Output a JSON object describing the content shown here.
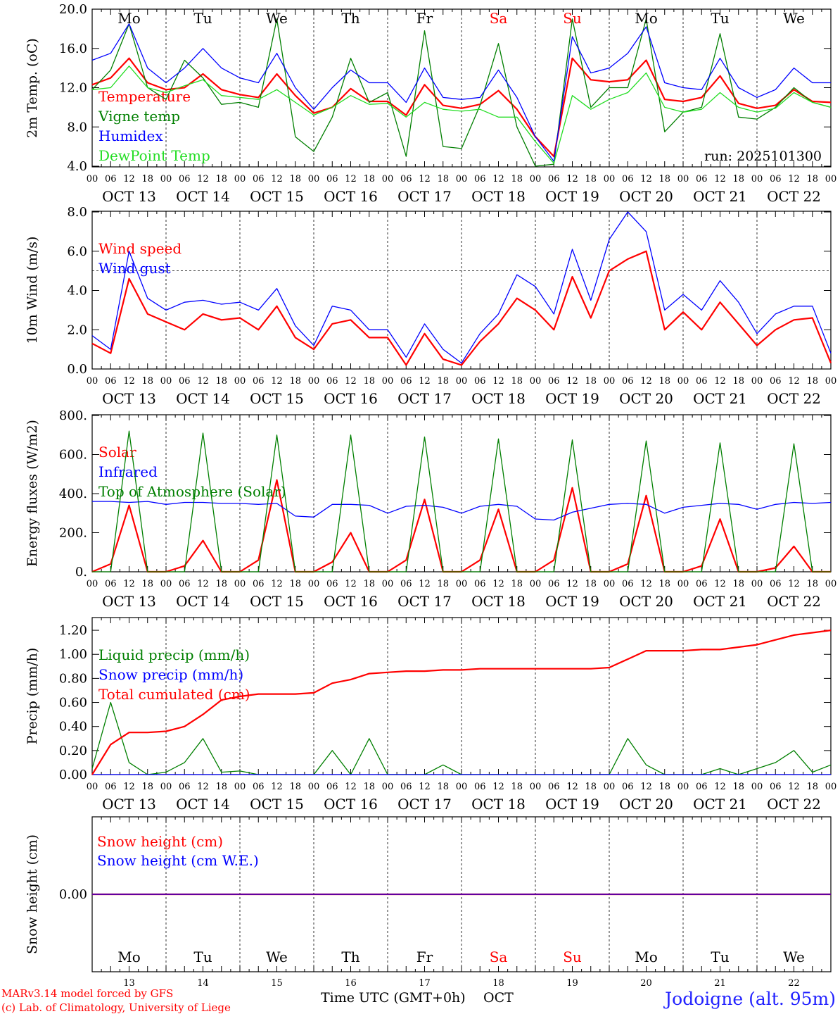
{
  "footer": {
    "model_line": "MARv3.14 model forced by GFS",
    "copyright_line": "(c) Lab. of Climatology, University of Liege",
    "xlabel": "Time UTC (GMT+0h)",
    "month": "OCT",
    "station": "Jodoigne (alt. 95m)"
  },
  "run_label": "run: 2025101300",
  "colors": {
    "red": "#ff0000",
    "green": "#007f00",
    "blue": "#0000ff",
    "lightgreen": "#22dd22",
    "weekend": "#ff0000",
    "black": "#000000"
  },
  "days": [
    {
      "dow": "Mo",
      "date": "OCT 13",
      "day": "13",
      "weekend": false
    },
    {
      "dow": "Tu",
      "date": "OCT 14",
      "day": "14",
      "weekend": false
    },
    {
      "dow": "We",
      "date": "OCT 15",
      "day": "15",
      "weekend": false
    },
    {
      "dow": "Th",
      "date": "OCT 16",
      "day": "16",
      "weekend": false
    },
    {
      "dow": "Fr",
      "date": "OCT 17",
      "day": "17",
      "weekend": false
    },
    {
      "dow": "Sa",
      "date": "OCT 18",
      "day": "18",
      "weekend": true
    },
    {
      "dow": "Su",
      "date": "OCT 19",
      "day": "19",
      "weekend": true
    },
    {
      "dow": "Mo",
      "date": "OCT 20",
      "day": "20",
      "weekend": false
    },
    {
      "dow": "Tu",
      "date": "OCT 21",
      "day": "21",
      "weekend": false
    },
    {
      "dow": "We",
      "date": "OCT 22",
      "day": "22",
      "weekend": false
    }
  ],
  "hour_ticks": [
    "00",
    "06",
    "12",
    "18"
  ],
  "chart_data": [
    {
      "type": "line",
      "ylabel": "2m Temp. (oC)",
      "ylim": [
        4,
        20
      ],
      "yticks": [
        "4.0",
        "8.0",
        "12.0",
        "16.0",
        "20.0"
      ],
      "x_hours": [
        0,
        6,
        12,
        18,
        24,
        30,
        36,
        42,
        48,
        54,
        60,
        66,
        72,
        78,
        84,
        90,
        96,
        102,
        108,
        114,
        120,
        126,
        132,
        138,
        144,
        150,
        156,
        162,
        168,
        174,
        180,
        186,
        192,
        198,
        204,
        210,
        216,
        222,
        228,
        234,
        240
      ],
      "series": [
        {
          "name": "Temperature",
          "color": "red",
          "values": [
            12.3,
            13.0,
            15.0,
            12.5,
            11.8,
            12.0,
            13.4,
            11.8,
            11.3,
            11.0,
            13.4,
            11.2,
            9.4,
            10.0,
            11.9,
            10.6,
            10.6,
            9.2,
            12.3,
            10.2,
            9.9,
            10.3,
            11.7,
            9.8,
            7.0,
            5.0,
            15.0,
            12.8,
            12.6,
            12.8,
            14.8,
            10.8,
            10.6,
            11.0,
            13.2,
            10.4,
            9.9,
            10.2,
            11.8,
            10.6,
            10.5
          ]
        },
        {
          "name": "Vigne temp",
          "color": "green",
          "values": [
            11.8,
            13.8,
            18.5,
            12.0,
            10.8,
            14.8,
            13.0,
            10.3,
            10.5,
            10.0,
            19.0,
            7.0,
            5.5,
            9.0,
            15.0,
            10.5,
            11.5,
            5.0,
            17.8,
            6.0,
            5.8,
            10.2,
            16.5,
            8.0,
            4.0,
            4.2,
            19.0,
            10.0,
            12.0,
            12.0,
            19.0,
            7.5,
            9.5,
            10.0,
            17.5,
            9.0,
            8.8,
            10.0,
            12.0,
            10.5,
            10.0
          ]
        },
        {
          "name": "Humidex",
          "color": "blue",
          "values": [
            14.8,
            15.5,
            18.5,
            14.0,
            12.5,
            14.0,
            16.0,
            14.0,
            13.0,
            12.5,
            15.5,
            12.0,
            9.8,
            12.0,
            13.8,
            12.5,
            12.5,
            10.5,
            14.0,
            11.0,
            10.8,
            11.0,
            13.8,
            11.0,
            7.0,
            4.5,
            17.2,
            13.5,
            14.0,
            15.5,
            18.2,
            12.5,
            12.0,
            11.8,
            15.0,
            12.0,
            11.0,
            11.8,
            14.0,
            12.5,
            12.5
          ]
        },
        {
          "name": "DewPoint Temp",
          "color": "lightgreen",
          "values": [
            11.8,
            12.0,
            14.2,
            12.0,
            11.5,
            12.2,
            12.8,
            11.2,
            11.0,
            10.8,
            11.8,
            10.5,
            9.2,
            10.0,
            11.2,
            10.3,
            10.4,
            9.0,
            10.5,
            9.8,
            9.6,
            9.8,
            9.0,
            9.0,
            6.5,
            4.3,
            11.2,
            9.8,
            10.8,
            11.5,
            13.5,
            10.0,
            9.5,
            9.8,
            11.5,
            10.0,
            9.5,
            9.9,
            11.5,
            10.5,
            10.0
          ]
        }
      ]
    },
    {
      "type": "line",
      "ylabel": "10m Wind (m/s)",
      "ylim": [
        0,
        8
      ],
      "yticks": [
        "0.0",
        "2.0",
        "4.0",
        "6.0",
        "8.0"
      ],
      "reference_line": 5.0,
      "x_hours": [
        0,
        6,
        12,
        18,
        24,
        30,
        36,
        42,
        48,
        54,
        60,
        66,
        72,
        78,
        84,
        90,
        96,
        102,
        108,
        114,
        120,
        126,
        132,
        138,
        144,
        150,
        156,
        162,
        168,
        174,
        180,
        186,
        192,
        198,
        204,
        210,
        216,
        222,
        228,
        234,
        240
      ],
      "series": [
        {
          "name": "Wind speed",
          "color": "red",
          "values": [
            1.3,
            0.8,
            4.6,
            2.8,
            2.4,
            2.0,
            2.8,
            2.5,
            2.6,
            2.0,
            3.2,
            1.6,
            1.0,
            2.3,
            2.5,
            1.6,
            1.6,
            0.2,
            1.8,
            0.5,
            0.2,
            1.4,
            2.3,
            3.6,
            3.0,
            2.0,
            4.7,
            2.6,
            5.0,
            5.6,
            6.0,
            2.0,
            2.9,
            2.0,
            3.4,
            2.3,
            1.2,
            2.0,
            2.5,
            2.6,
            0.3
          ]
        },
        {
          "name": "Wind gust",
          "color": "blue",
          "values": [
            1.7,
            1.0,
            6.0,
            3.6,
            3.0,
            3.4,
            3.5,
            3.3,
            3.4,
            3.0,
            4.1,
            2.2,
            1.2,
            3.2,
            3.0,
            2.0,
            2.0,
            0.6,
            2.3,
            1.0,
            0.3,
            1.8,
            2.8,
            4.8,
            4.2,
            2.8,
            6.1,
            3.5,
            6.6,
            8.0,
            7.0,
            3.0,
            3.8,
            3.0,
            4.5,
            3.4,
            1.8,
            2.8,
            3.2,
            3.2,
            0.8
          ]
        }
      ]
    },
    {
      "type": "line",
      "ylabel": "Energy fluxes (W/m2)",
      "ylim": [
        0,
        800
      ],
      "yticks": [
        "0.",
        "200.",
        "400.",
        "600.",
        "800."
      ],
      "x_hours": [
        0,
        6,
        12,
        18,
        24,
        30,
        36,
        42,
        48,
        54,
        60,
        66,
        72,
        78,
        84,
        90,
        96,
        102,
        108,
        114,
        120,
        126,
        132,
        138,
        144,
        150,
        156,
        162,
        168,
        174,
        180,
        186,
        192,
        198,
        204,
        210,
        216,
        222,
        228,
        234,
        240
      ],
      "series": [
        {
          "name": "Solar",
          "color": "red",
          "values": [
            0,
            40,
            340,
            0,
            0,
            30,
            160,
            0,
            0,
            60,
            470,
            0,
            0,
            50,
            200,
            0,
            0,
            60,
            370,
            0,
            0,
            60,
            320,
            0,
            0,
            60,
            430,
            0,
            0,
            40,
            390,
            0,
            0,
            30,
            270,
            0,
            0,
            20,
            130,
            0,
            0
          ]
        },
        {
          "name": "Infrared",
          "color": "blue",
          "values": [
            360,
            360,
            355,
            360,
            345,
            355,
            355,
            350,
            350,
            345,
            350,
            285,
            280,
            345,
            345,
            340,
            300,
            335,
            340,
            330,
            300,
            335,
            345,
            335,
            270,
            265,
            305,
            325,
            345,
            350,
            345,
            300,
            330,
            340,
            350,
            345,
            320,
            345,
            355,
            350,
            355
          ]
        },
        {
          "name": "Top of Atmosphere (Solar)",
          "color": "green",
          "values": [
            0,
            0,
            720,
            0,
            0,
            0,
            710,
            0,
            0,
            0,
            700,
            0,
            0,
            0,
            700,
            0,
            0,
            0,
            690,
            0,
            0,
            0,
            680,
            0,
            0,
            0,
            675,
            0,
            0,
            0,
            670,
            0,
            0,
            0,
            660,
            0,
            0,
            0,
            655,
            0,
            0
          ]
        }
      ]
    },
    {
      "type": "line",
      "ylabel": "Precip (mm/h)",
      "ylim": [
        0,
        1.3
      ],
      "yticks": [
        "0.00",
        "0.20",
        "0.40",
        "0.60",
        "0.80",
        "1.00",
        "1.20"
      ],
      "x_hours": [
        0,
        6,
        12,
        18,
        24,
        30,
        36,
        42,
        48,
        54,
        60,
        66,
        72,
        78,
        84,
        90,
        96,
        102,
        108,
        114,
        120,
        126,
        132,
        138,
        144,
        150,
        156,
        162,
        168,
        174,
        180,
        186,
        192,
        198,
        204,
        210,
        216,
        222,
        228,
        234,
        240
      ],
      "series": [
        {
          "name": "Liquid precip (mm/h)",
          "color": "green",
          "values": [
            0.05,
            0.6,
            0.1,
            0.0,
            0.02,
            0.1,
            0.3,
            0.02,
            0.03,
            0.0,
            0.0,
            0.0,
            0.0,
            0.2,
            0.0,
            0.3,
            0.0,
            0.0,
            0.0,
            0.08,
            0.0,
            0.0,
            0.0,
            0.0,
            0.0,
            0.0,
            0.0,
            0.0,
            0.0,
            0.3,
            0.08,
            0.0,
            0.0,
            0.0,
            0.05,
            0.0,
            0.05,
            0.1,
            0.2,
            0.02,
            0.08
          ]
        },
        {
          "name": "Snow precip (mm/h)",
          "color": "blue",
          "values": [
            0,
            0,
            0,
            0,
            0,
            0,
            0,
            0,
            0,
            0,
            0,
            0,
            0,
            0,
            0,
            0,
            0,
            0,
            0,
            0,
            0,
            0,
            0,
            0,
            0,
            0,
            0,
            0,
            0,
            0,
            0,
            0,
            0,
            0,
            0,
            0,
            0,
            0,
            0,
            0,
            0
          ]
        },
        {
          "name": "Total cumulated (cm)",
          "color": "red",
          "values": [
            0.0,
            0.25,
            0.35,
            0.35,
            0.36,
            0.4,
            0.5,
            0.62,
            0.65,
            0.67,
            0.67,
            0.67,
            0.68,
            0.76,
            0.79,
            0.84,
            0.85,
            0.86,
            0.86,
            0.87,
            0.87,
            0.88,
            0.88,
            0.88,
            0.88,
            0.88,
            0.88,
            0.88,
            0.89,
            0.96,
            1.03,
            1.03,
            1.03,
            1.04,
            1.04,
            1.06,
            1.08,
            1.12,
            1.16,
            1.18,
            1.2
          ]
        }
      ]
    },
    {
      "type": "line",
      "ylabel": "Snow height (cm)",
      "ylim": [
        -1,
        1
      ],
      "yticks": [
        "0.00"
      ],
      "x_hours": [
        0,
        240
      ],
      "series": [
        {
          "name": "Snow height (cm)",
          "color": "red",
          "values": [
            0,
            0
          ]
        },
        {
          "name": "Snow height (cm W.E.)",
          "color": "blue",
          "values": [
            0,
            0
          ]
        }
      ]
    }
  ]
}
